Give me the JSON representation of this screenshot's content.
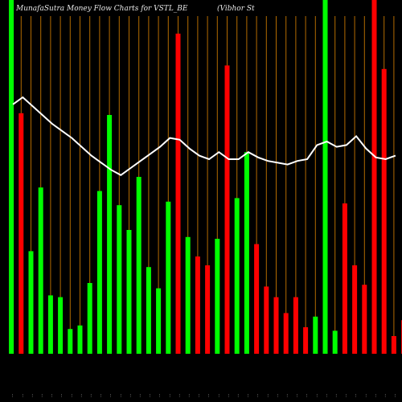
{
  "header": {
    "title": "MunafaSutra  Money Flow  Charts for VSTL_BE",
    "company": "(Vibhor St"
  },
  "chart_data": {
    "type": "bar",
    "title": "MunafaSutra  Money Flow  Charts for VSTL_BE",
    "ylim": [
      0,
      100
    ],
    "colors": {
      "up": "#00ff00",
      "down": "#ff0000",
      "line": "#ffffff",
      "grid": "#b36b00",
      "background": "#000000"
    },
    "bars": [
      {
        "label": "...",
        "value": 100,
        "dir": "up"
      },
      {
        "label": "...",
        "value": 68,
        "dir": "down"
      },
      {
        "label": "...",
        "value": 29,
        "dir": "up"
      },
      {
        "label": "...",
        "value": 47,
        "dir": "up"
      },
      {
        "label": "...",
        "value": 16.5,
        "dir": "up"
      },
      {
        "label": "...",
        "value": 16,
        "dir": "up"
      },
      {
        "label": "...",
        "value": 7,
        "dir": "up"
      },
      {
        "label": "...",
        "value": 8,
        "dir": "up"
      },
      {
        "label": "...",
        "value": 20,
        "dir": "up"
      },
      {
        "label": "...",
        "value": 46,
        "dir": "up"
      },
      {
        "label": "...",
        "value": 67.5,
        "dir": "up"
      },
      {
        "label": "...",
        "value": 42,
        "dir": "up"
      },
      {
        "label": "...",
        "value": 35,
        "dir": "up"
      },
      {
        "label": "...",
        "value": 50,
        "dir": "up"
      },
      {
        "label": "...",
        "value": 24.5,
        "dir": "up"
      },
      {
        "label": "...",
        "value": 18.5,
        "dir": "up"
      },
      {
        "label": "...",
        "value": 43,
        "dir": "up"
      },
      {
        "label": "...",
        "value": 90.5,
        "dir": "down"
      },
      {
        "label": "...",
        "value": 33,
        "dir": "up"
      },
      {
        "label": "...",
        "value": 27.5,
        "dir": "down"
      },
      {
        "label": "...",
        "value": 25,
        "dir": "down"
      },
      {
        "label": "...",
        "value": 32.5,
        "dir": "up"
      },
      {
        "label": "...",
        "value": 81.5,
        "dir": "down"
      },
      {
        "label": "...",
        "value": 44,
        "dir": "up"
      },
      {
        "label": "...",
        "value": 57,
        "dir": "up"
      },
      {
        "label": "...",
        "value": 31,
        "dir": "down"
      },
      {
        "label": "...",
        "value": 19,
        "dir": "down"
      },
      {
        "label": "...",
        "value": 16,
        "dir": "down"
      },
      {
        "label": "...",
        "value": 11.5,
        "dir": "down"
      },
      {
        "label": "...",
        "value": 16,
        "dir": "down"
      },
      {
        "label": "...",
        "value": 7.5,
        "dir": "down"
      },
      {
        "label": "...",
        "value": 10.5,
        "dir": "up"
      },
      {
        "label": "...",
        "value": 100,
        "dir": "up"
      },
      {
        "label": "...",
        "value": 6.5,
        "dir": "up"
      },
      {
        "label": "...",
        "value": 42.5,
        "dir": "down"
      },
      {
        "label": "...",
        "value": 25,
        "dir": "down"
      },
      {
        "label": "...",
        "value": 19.5,
        "dir": "down"
      },
      {
        "label": "...",
        "value": 100,
        "dir": "down"
      },
      {
        "label": "...",
        "value": 80.5,
        "dir": "down"
      },
      {
        "label": "...",
        "value": 5,
        "dir": "down"
      },
      {
        "label": "...",
        "value": 9.5,
        "dir": "down"
      }
    ],
    "line": [
      70.5,
      72.5,
      70,
      67.5,
      65,
      63,
      61,
      58.5,
      56,
      54,
      52,
      50.5,
      52.5,
      54.5,
      56.5,
      58.5,
      61,
      60.5,
      58,
      56,
      55,
      57,
      55,
      55,
      57,
      55.5,
      54.5,
      54,
      53.5,
      54.5,
      55,
      59,
      60,
      58.5,
      59,
      61.5,
      58,
      55.5,
      55,
      56
    ],
    "grid": "vertical"
  }
}
